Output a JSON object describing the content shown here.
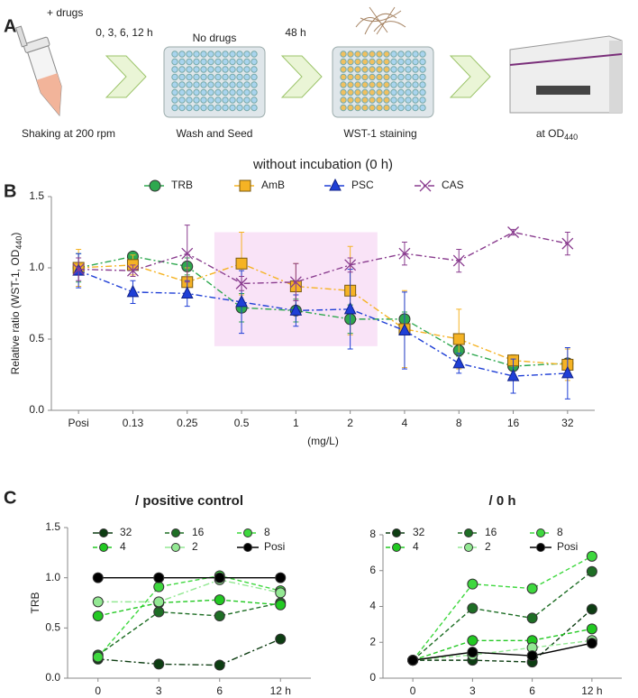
{
  "panel_labels": [
    "A",
    "B",
    "C"
  ],
  "diagram": {
    "drug_label": "+ drugs",
    "time_label": "0, 3, 6, 12 h",
    "incubation_caption": "Shaking at 200 rpm",
    "no_drug_label": "No drugs",
    "seed_caption": "Wash and Seed",
    "wait_label": "48 h",
    "stain_caption": "WST-1 staining",
    "read_caption": [
      "at OD",
      "440"
    ]
  },
  "chart_data": [
    {
      "type": "line",
      "title": "without incubation (0 h)",
      "xlabel": "(mg/L)",
      "ylabel": [
        "Relative ratio (WST-1, OD",
        "440",
        ")"
      ],
      "categories": [
        "Posi",
        "0.13",
        "0.25",
        "0.5",
        "1",
        "2",
        "4",
        "8",
        "16",
        "32"
      ],
      "ylim": [
        0,
        1.5
      ],
      "yticks": [
        {
          "value": 0,
          "label": "0.0"
        },
        {
          "value": 0.5,
          "label": "0.5"
        },
        {
          "value": 1,
          "label": "1.0"
        },
        {
          "value": 1.5,
          "label": "1.5"
        }
      ],
      "legend": "top",
      "legend_columns": 4,
      "series": [
        {
          "name": "TRB",
          "color": "#2ea84f",
          "marker": "circle",
          "line_style": "dash-dot",
          "values": [
            1.0,
            1.08,
            1.01,
            0.72,
            0.7,
            0.64,
            0.64,
            0.42,
            0.31,
            0.33
          ],
          "errors": [
            0.1,
            0.03,
            0.06,
            0.1,
            0.08,
            0.1,
            0.05,
            0.04,
            0.03,
            0.03
          ]
        },
        {
          "name": "AmB",
          "color": "#f5b324",
          "marker": "square",
          "line_style": "dash-dot",
          "values": [
            1.0,
            1.02,
            0.9,
            1.03,
            0.87,
            0.84,
            0.57,
            0.5,
            0.35,
            0.32
          ],
          "errors": [
            0.13,
            0.07,
            0.1,
            0.22,
            0.16,
            0.31,
            0.27,
            0.21,
            0.04,
            0.11
          ]
        },
        {
          "name": "PSC",
          "color": "#1f3fd6",
          "marker": "triangle",
          "line_style": "dash-dot",
          "values": [
            0.98,
            0.83,
            0.82,
            0.76,
            0.7,
            0.71,
            0.56,
            0.33,
            0.24,
            0.26
          ],
          "errors": [
            0.12,
            0.08,
            0.09,
            0.22,
            0.11,
            0.28,
            0.27,
            0.07,
            0.12,
            0.18
          ]
        },
        {
          "name": "CAS",
          "color": "#8a3d8f",
          "marker": "x",
          "line_style": "dash-dot",
          "values": [
            0.99,
            0.98,
            1.1,
            0.89,
            0.9,
            1.02,
            1.1,
            1.05,
            1.25,
            1.17
          ],
          "errors": [
            0.08,
            0.04,
            0.2,
            0.05,
            0.13,
            0.05,
            0.08,
            0.08,
            0.02,
            0.08
          ]
        }
      ]
    },
    {
      "type": "line",
      "title": "/ positive control",
      "ylabel": "TRB",
      "categories": [
        "0",
        "3",
        "6",
        "12 h"
      ],
      "ylim": [
        0,
        1.5
      ],
      "yticks": [
        {
          "value": 0,
          "label": "0.0"
        },
        {
          "value": 0.5,
          "label": "0.5"
        },
        {
          "value": 1,
          "label": "1.0"
        },
        {
          "value": 1.5,
          "label": "1.5"
        }
      ],
      "legend": "top",
      "legend_columns": 3,
      "series": [
        {
          "name": "32",
          "color": "#0d3d12",
          "marker": "circle",
          "line_style": "dash-dot",
          "values": [
            0.19,
            0.14,
            0.13,
            0.39
          ]
        },
        {
          "name": "16",
          "color": "#1e6e25",
          "marker": "circle",
          "line_style": "dash",
          "values": [
            0.23,
            0.66,
            0.62,
            0.75
          ]
        },
        {
          "name": "8",
          "color": "#3ed83e",
          "marker": "circle",
          "line_style": "dash",
          "values": [
            0.21,
            0.91,
            1.02,
            0.87
          ]
        },
        {
          "name": "4",
          "color": "#22c922",
          "marker": "circle",
          "line_style": "dash",
          "values": [
            0.62,
            0.75,
            0.78,
            0.73
          ]
        },
        {
          "name": "2",
          "color": "#93e893",
          "marker": "circle",
          "line_style": "dash-dot",
          "values": [
            0.76,
            0.76,
            0.98,
            0.85
          ]
        },
        {
          "name": "Posi",
          "color": "#000000",
          "marker": "circle",
          "line_style": "solid",
          "values": [
            1.0,
            1.0,
            1.0,
            1.0
          ]
        }
      ]
    },
    {
      "type": "line",
      "title": "/ 0 h",
      "categories": [
        "0",
        "3",
        "6",
        "12 h"
      ],
      "ylim": [
        0,
        8
      ],
      "yticks": [
        0,
        2,
        4,
        6,
        8
      ],
      "legend": "top",
      "legend_columns": 3,
      "series": [
        {
          "name": "32",
          "color": "#0d3d12",
          "marker": "circle",
          "line_style": "dash",
          "values": [
            1.0,
            1.0,
            0.9,
            3.85
          ]
        },
        {
          "name": "16",
          "color": "#1e6e25",
          "marker": "circle",
          "line_style": "dash",
          "values": [
            1.0,
            3.9,
            3.35,
            5.95
          ]
        },
        {
          "name": "8",
          "color": "#3ed83e",
          "marker": "circle",
          "line_style": "dash",
          "values": [
            1.0,
            5.25,
            5.0,
            6.8
          ]
        },
        {
          "name": "4",
          "color": "#22c922",
          "marker": "circle",
          "line_style": "dash",
          "values": [
            1.0,
            2.1,
            2.1,
            2.75
          ]
        },
        {
          "name": "2",
          "color": "#93e893",
          "marker": "circle",
          "line_style": "dash",
          "values": [
            1.0,
            1.3,
            1.7,
            2.1
          ]
        },
        {
          "name": "Posi",
          "color": "#000000",
          "marker": "circle",
          "line_style": "solid",
          "values": [
            1.0,
            1.45,
            1.25,
            1.95
          ]
        }
      ]
    }
  ]
}
